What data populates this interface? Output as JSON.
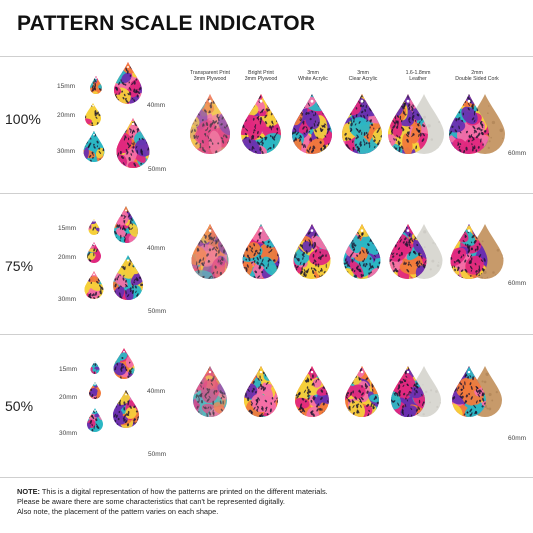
{
  "title": "PATTERN SCALE INDICATOR",
  "materials": [
    {
      "line1": "Transparent Print",
      "line2": "3mm Plywood"
    },
    {
      "line1": "Bright Print",
      "line2": "3mm Plywood"
    },
    {
      "line1": "3mm",
      "line2": "White Acrylic"
    },
    {
      "line1": "3mm",
      "line2": "Clear Acrylic"
    },
    {
      "line1": "1.6-1.8mm",
      "line2": "Leather"
    },
    {
      "line1": "2mm",
      "line2": "Double Sided Cork"
    }
  ],
  "sections": [
    {
      "scale": "100%",
      "sizes": [
        "15mm",
        "20mm",
        "30mm",
        "40mm",
        "50mm",
        "60mm"
      ]
    },
    {
      "scale": "75%",
      "sizes": [
        "15mm",
        "20mm",
        "30mm",
        "40mm",
        "50mm",
        "60mm"
      ]
    },
    {
      "scale": "50%",
      "sizes": [
        "15mm",
        "20mm",
        "30mm",
        "40mm",
        "50mm",
        "60mm"
      ]
    }
  ],
  "note": {
    "label": "NOTE:",
    "line1": "This is a digital representation of how the patterns are printed on the different materials.",
    "line2": "Please be aware there are some characteristics that can't be represented digitally.",
    "line3": "Also note, the placement of the pattern varies on each shape."
  },
  "colors": {
    "magenta": "#e0287e",
    "purple": "#6a2fb0",
    "orange": "#f27a3a",
    "teal": "#2bb7c4",
    "yellow": "#f6d03a",
    "pink": "#f46fa6",
    "leather": "#d9d8d2",
    "cork": "#c79a6a"
  }
}
